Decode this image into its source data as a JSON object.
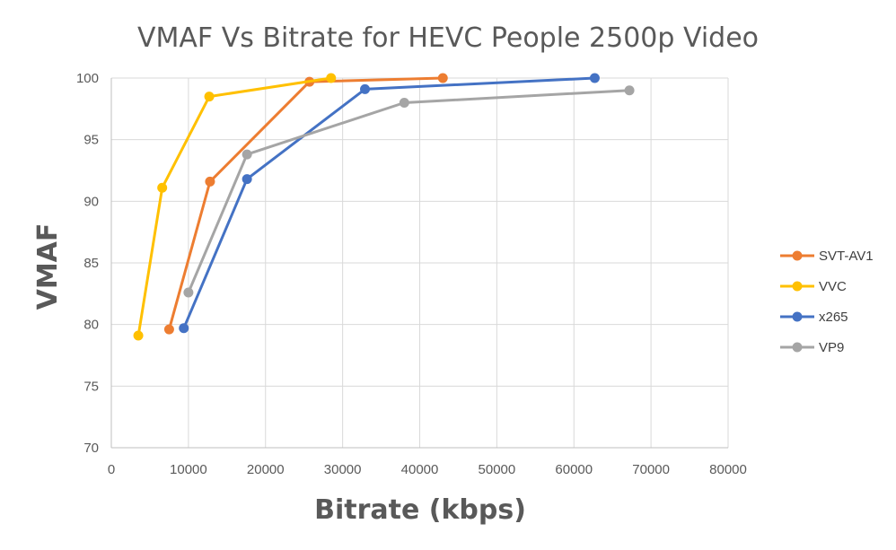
{
  "chart_data": {
    "type": "line",
    "title": "VMAF Vs Bitrate for HEVC People 2500p Video",
    "xlabel": "Bitrate (kbps)",
    "ylabel": "VMAF",
    "xlim": [
      0,
      80000
    ],
    "ylim": [
      70,
      100
    ],
    "x_ticks": [
      "0",
      "10000",
      "20000",
      "30000",
      "40000",
      "50000",
      "60000",
      "70000",
      "80000"
    ],
    "y_ticks": [
      "70",
      "75",
      "80",
      "85",
      "90",
      "95",
      "100"
    ],
    "grid": true,
    "legend_position": "right",
    "series": [
      {
        "name": "SVT-AV1",
        "color": "#ed7d31",
        "points": [
          [
            7500,
            79.6
          ],
          [
            12800,
            91.6
          ],
          [
            25700,
            99.7
          ],
          [
            43000,
            100.0
          ]
        ]
      },
      {
        "name": "VVC",
        "color": "#ffc000",
        "points": [
          [
            3500,
            79.1
          ],
          [
            6600,
            91.1
          ],
          [
            12700,
            98.5
          ],
          [
            28500,
            100.0
          ]
        ]
      },
      {
        "name": "x265",
        "color": "#4472c4",
        "points": [
          [
            9400,
            79.7
          ],
          [
            17600,
            91.8
          ],
          [
            32900,
            99.1
          ],
          [
            62700,
            100.0
          ]
        ]
      },
      {
        "name": "VP9",
        "color": "#a5a5a5",
        "points": [
          [
            10000,
            82.6
          ],
          [
            17600,
            93.8
          ],
          [
            38000,
            98.0
          ],
          [
            67200,
            99.0
          ]
        ]
      }
    ]
  }
}
